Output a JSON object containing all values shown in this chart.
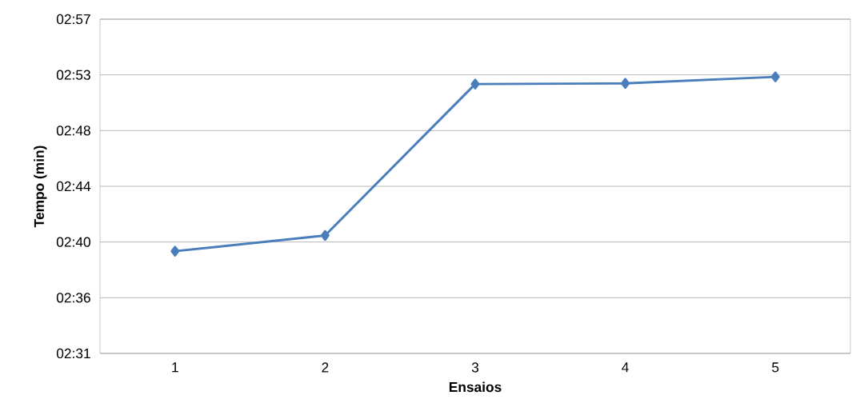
{
  "chart_data": {
    "type": "line",
    "xlabel": "Ensaios",
    "ylabel": "Tempo (min)",
    "categories": [
      "1",
      "2",
      "3",
      "4",
      "5"
    ],
    "series": [
      {
        "color": "#4a7ebb",
        "values": [
          159.2,
          160.4,
          171.95,
          172.0,
          172.5
        ]
      }
    ],
    "ylim": [
      151.4,
      176.9
    ],
    "yticks": [
      {
        "value": 151.4,
        "label": "02:31"
      },
      {
        "value": 155.65,
        "label": "02:36"
      },
      {
        "value": 159.9,
        "label": "02:40"
      },
      {
        "value": 164.15,
        "label": "02:44"
      },
      {
        "value": 168.4,
        "label": "02:48"
      },
      {
        "value": 172.65,
        "label": "02:53"
      },
      {
        "value": 176.9,
        "label": "02:57"
      }
    ],
    "grid": "y",
    "marker": "diamond",
    "line_style": "solid"
  }
}
